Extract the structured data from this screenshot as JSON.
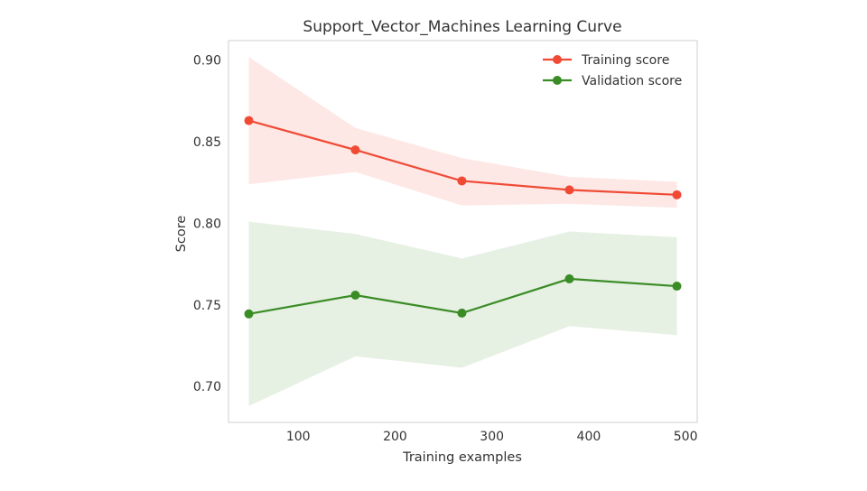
{
  "chart_data": {
    "type": "line",
    "title": "Support_Vector_Machines Learning Curve",
    "xlabel": "Training examples",
    "ylabel": "Score",
    "x": [
      49,
      159,
      269,
      380,
      491
    ],
    "xlim": [
      28,
      512
    ],
    "ylim": [
      0.678,
      0.912
    ],
    "xticks": [
      100,
      200,
      300,
      400,
      500
    ],
    "yticks": [
      0.7,
      0.75,
      0.8,
      0.85,
      0.9
    ],
    "grid": false,
    "legend_position": "top-right",
    "series": [
      {
        "name": "Training score",
        "color": "#f04a35",
        "values": [
          0.863,
          0.845,
          0.826,
          0.8205,
          0.8175
        ],
        "upper": [
          0.902,
          0.8585,
          0.84,
          0.8285,
          0.8255
        ],
        "lower": [
          0.824,
          0.8315,
          0.811,
          0.812,
          0.8095
        ]
      },
      {
        "name": "Validation score",
        "color": "#3a8c25",
        "values": [
          0.7445,
          0.756,
          0.745,
          0.766,
          0.7615
        ],
        "upper": [
          0.801,
          0.7935,
          0.7785,
          0.795,
          0.7915
        ],
        "lower": [
          0.688,
          0.7185,
          0.7115,
          0.737,
          0.7315
        ]
      }
    ]
  }
}
